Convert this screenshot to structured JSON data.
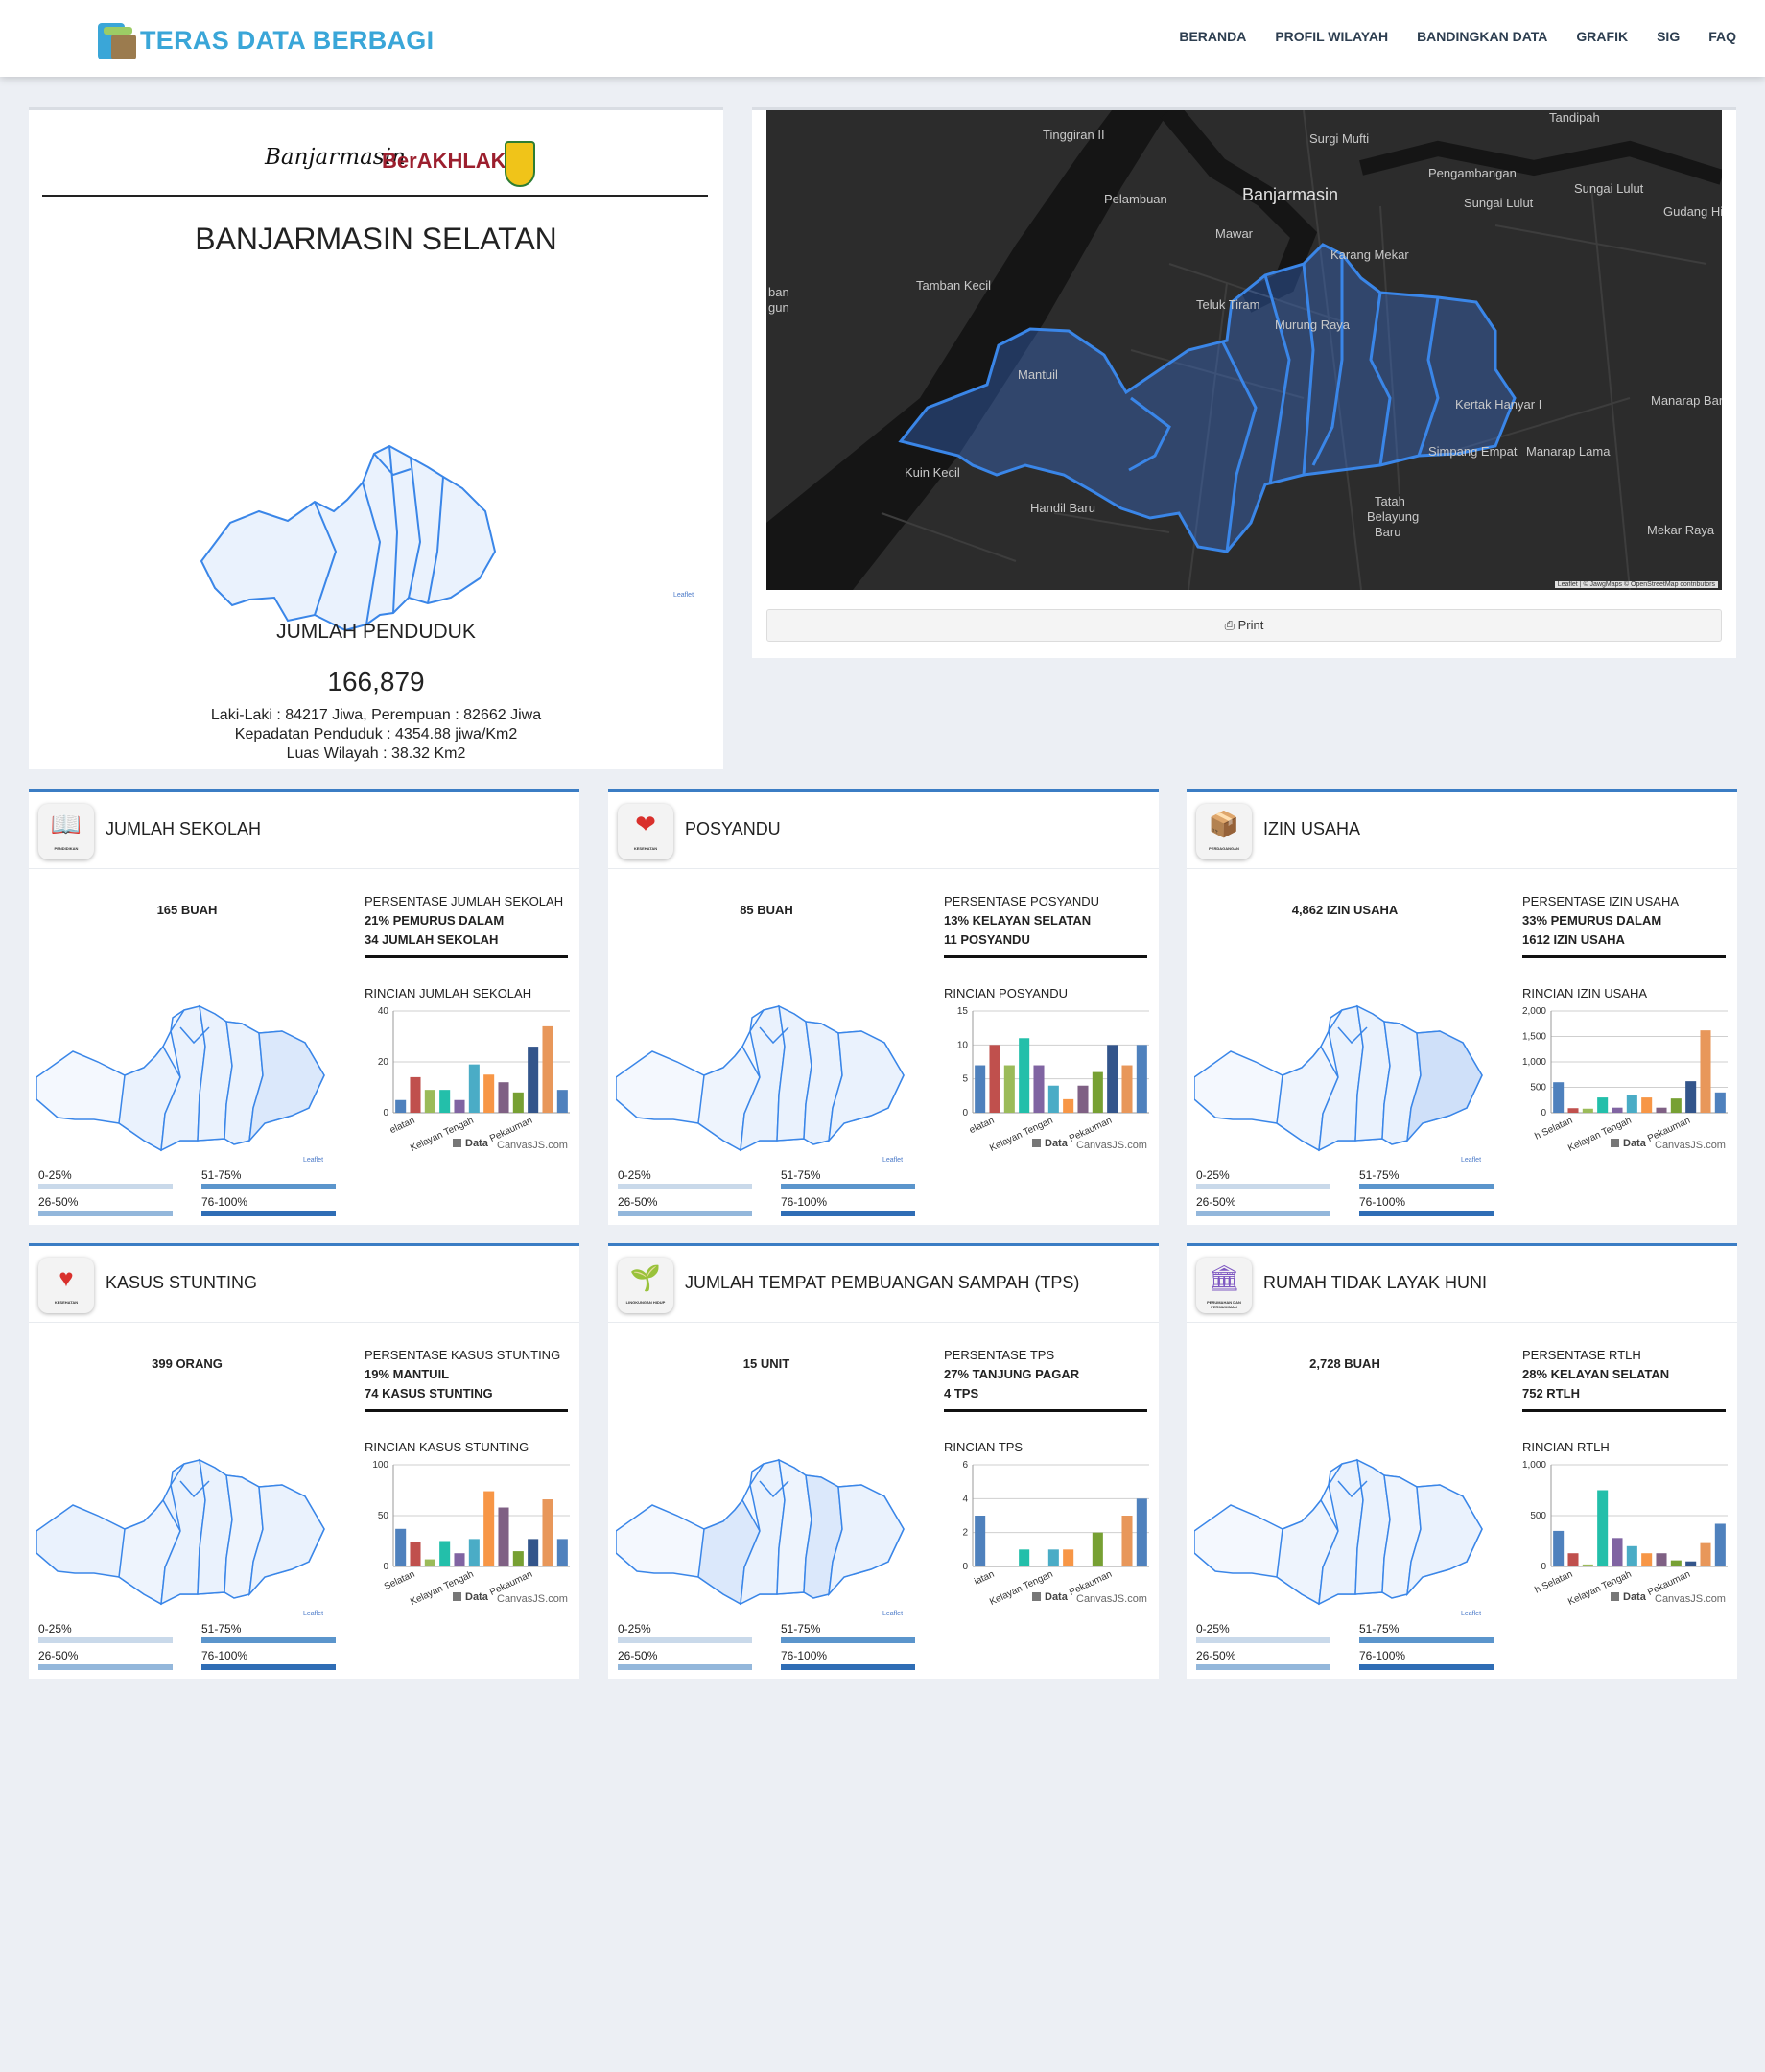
{
  "header": {
    "brand": "TERAS DATA BERBAGI",
    "nav": [
      "BERANDA",
      "PROFIL WILAYAH",
      "BANDINGKAN DATA",
      "GRAFIK",
      "SIG",
      "FAQ"
    ]
  },
  "profile": {
    "logo_script": "Banjarmasin",
    "logo_ber": "BerAKHLAK",
    "region_name": "BANJARMASIN SELATAN",
    "leaflet": "Leaflet",
    "population_title": "JUMLAH PENDUDUK",
    "population_value": "166,879",
    "gender_line": "Laki-Laki : 84217 Jiwa, Perempuan : 82662 Jiwa",
    "density_line": "Kepadatan Penduduk : 4354.88 jiwa/Km2",
    "area_line": "Luas Wilayah : 38.32 Km2"
  },
  "map": {
    "labels": [
      "Tinggiran II",
      "Surgi Mufti",
      "Tandipah",
      "Pengambangan",
      "Pelambuan",
      "Banjarmasin",
      "Sungai Lulut",
      "Sungai Lulut",
      "Gudang Hi",
      "Mawar",
      "Karang Mekar",
      "Tamban Kecil",
      "Teluk Tiram",
      "Murung Raya",
      "ban",
      "gun",
      "Mantuil",
      "Kertak Hanyar I",
      "Manarap Bar",
      "Simpang Empat",
      "Manarap Lama",
      "Kuin Kecil",
      "Handil Baru",
      "Tatah",
      "Belayung",
      "Baru",
      "Mekar Raya"
    ],
    "attribution": "Leaflet | © JawgMaps © OpenStreetMap contributors",
    "print_label": "Print"
  },
  "scale": {
    "q1": "0-25%",
    "q2": "26-50%",
    "q3": "51-75%",
    "q4": "76-100%"
  },
  "chart_legend": "Data",
  "chart_credit": "CanvasJS.com",
  "colors": {
    "accent": "#3b7dc4",
    "brand": "#3aa6d8",
    "map_bg": "#2c2c2c",
    "region_fill": "#eaf2fd",
    "region_stroke": "#3a86e8"
  },
  "cards": [
    {
      "title": "JUMLAH SEKOLAH",
      "icon": "book-icon",
      "icon_caption": "PENDIDIKAN",
      "count": "165 BUAH",
      "pct_title": "PERSENTASE JUMLAH SEKOLAH",
      "pct_line1": "21% PEMURUS DALAM",
      "pct_line2": "34 JUMLAH SEKOLAH",
      "rincian": "RINCIAN JUMLAH SEKOLAH",
      "chart_data": {
        "type": "bar",
        "ylim": [
          0,
          40
        ],
        "yticks": [
          "0",
          "20",
          "40"
        ],
        "x_tick_labels": [
          "elatan",
          "Kelayan Tengah",
          "Pekauman"
        ],
        "values": [
          5,
          14,
          9,
          9,
          5,
          19,
          15,
          12,
          8,
          26,
          34,
          9
        ]
      }
    },
    {
      "title": "POSYANDU",
      "icon": "heart-icon",
      "icon_caption": "KESEHATAN",
      "count": "85 BUAH",
      "pct_title": "PERSENTASE POSYANDU",
      "pct_line1": "13% KELAYAN SELATAN",
      "pct_line2": "11 POSYANDU",
      "rincian": "RINCIAN POSYANDU",
      "chart_data": {
        "type": "bar",
        "ylim": [
          0,
          15
        ],
        "yticks": [
          "0",
          "5",
          "10",
          "15"
        ],
        "x_tick_labels": [
          "elatan",
          "Kelayan Tengah",
          "Pekauman"
        ],
        "values": [
          7,
          10,
          7,
          11,
          7,
          4,
          2,
          4,
          6,
          10,
          7,
          10
        ]
      }
    },
    {
      "title": "IZIN USAHA",
      "icon": "box-icon",
      "icon_caption": "PERDAGANGAN",
      "count": "4,862 IZIN USAHA",
      "pct_title": "PERSENTASE IZIN USAHA",
      "pct_line1": "33% PEMURUS DALAM",
      "pct_line2": "1612 IZIN USAHA",
      "rincian": "RINCIAN IZIN USAHA",
      "chart_data": {
        "type": "bar",
        "ylim": [
          0,
          2000
        ],
        "yticks": [
          "0",
          "500",
          "1,000",
          "1,500",
          "2,000"
        ],
        "x_tick_labels": [
          "h Selatan",
          "Kelayan Tengah",
          "Pekauman"
        ],
        "values": [
          600,
          90,
          80,
          300,
          100,
          340,
          300,
          100,
          280,
          620,
          1620,
          400
        ]
      }
    },
    {
      "title": "KASUS STUNTING",
      "icon": "heart-pulse-icon",
      "icon_caption": "KESEHATAN",
      "count": "399 ORANG",
      "pct_title": "PERSENTASE KASUS STUNTING",
      "pct_line1": "19% MANTUIL",
      "pct_line2": "74 KASUS STUNTING",
      "rincian": "RINCIAN KASUS STUNTING",
      "chart_data": {
        "type": "bar",
        "ylim": [
          0,
          100
        ],
        "yticks": [
          "0",
          "50",
          "100"
        ],
        "x_tick_labels": [
          "Selatan",
          "Kelayan Tengah",
          "Pekauman"
        ],
        "values": [
          37,
          24,
          7,
          25,
          13,
          27,
          74,
          58,
          15,
          27,
          66,
          27
        ]
      }
    },
    {
      "title": "JUMLAH TEMPAT PEMBUANGAN SAMPAH (TPS)",
      "icon": "plant-icon",
      "icon_caption": "LINGKUNGAN HIDUP",
      "count": "15 UNIT",
      "pct_title": "PERSENTASE TPS",
      "pct_line1": "27% TANJUNG PAGAR",
      "pct_line2": "4 TPS",
      "rincian": "RINCIAN TPS",
      "chart_data": {
        "type": "bar",
        "ylim": [
          0,
          6
        ],
        "yticks": [
          "0",
          "2",
          "4",
          "6"
        ],
        "x_tick_labels": [
          "iatan",
          "Kelayan Tengah",
          "Pekauman"
        ],
        "values": [
          3,
          0,
          0,
          1,
          0,
          1,
          1,
          0,
          2,
          0,
          3,
          4
        ]
      }
    },
    {
      "title": "RUMAH TIDAK LAYAK HUNI",
      "icon": "building-icon",
      "icon_caption": "PERUMAHAN DAN PERMUKIMAN",
      "count": "2,728 BUAH",
      "pct_title": "PERSENTASE RTLH",
      "pct_line1": "28% KELAYAN SELATAN",
      "pct_line2": "752 RTLH",
      "rincian": "RINCIAN RTLH",
      "chart_data": {
        "type": "bar",
        "ylim": [
          0,
          1000
        ],
        "yticks": [
          "0",
          "500",
          "1,000"
        ],
        "x_tick_labels": [
          "h Selatan",
          "Kelayan Tengah",
          "Pekauman"
        ],
        "values": [
          350,
          130,
          20,
          750,
          280,
          200,
          130,
          130,
          60,
          50,
          230,
          420
        ]
      }
    }
  ]
}
